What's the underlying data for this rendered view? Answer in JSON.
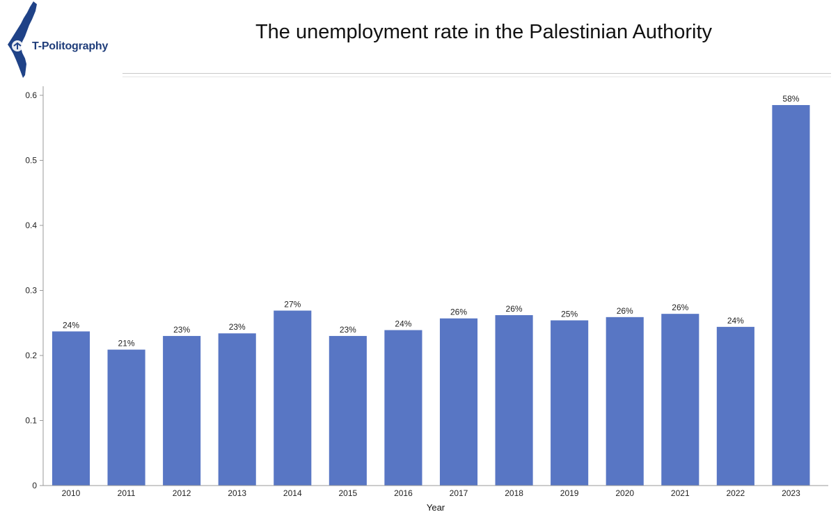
{
  "header": {
    "logo_text": "T-Politography",
    "title": "The unemployment rate in the Palestinian Authority"
  },
  "colors": {
    "bar": "#5876c4",
    "logo": "#1f4287",
    "axis": "#999999"
  },
  "chart_data": {
    "type": "bar",
    "title": "The unemployment rate in the Palestinian Authority",
    "xlabel": "Year",
    "ylabel": "",
    "ylim": [
      0,
      0.6
    ],
    "yticks": [
      "0",
      "0.1",
      "0.2",
      "0.3",
      "0.4",
      "0.5",
      "0.6"
    ],
    "grid": false,
    "categories": [
      "2010",
      "2011",
      "2012",
      "2013",
      "2014",
      "2015",
      "2016",
      "2017",
      "2018",
      "2019",
      "2020",
      "2021",
      "2022",
      "2023"
    ],
    "values": [
      0.237,
      0.209,
      0.23,
      0.234,
      0.269,
      0.23,
      0.239,
      0.257,
      0.262,
      0.254,
      0.259,
      0.264,
      0.244,
      0.585
    ],
    "labels": [
      "24%",
      "21%",
      "23%",
      "23%",
      "27%",
      "23%",
      "24%",
      "26%",
      "26%",
      "25%",
      "26%",
      "26%",
      "24%",
      "58%"
    ]
  }
}
